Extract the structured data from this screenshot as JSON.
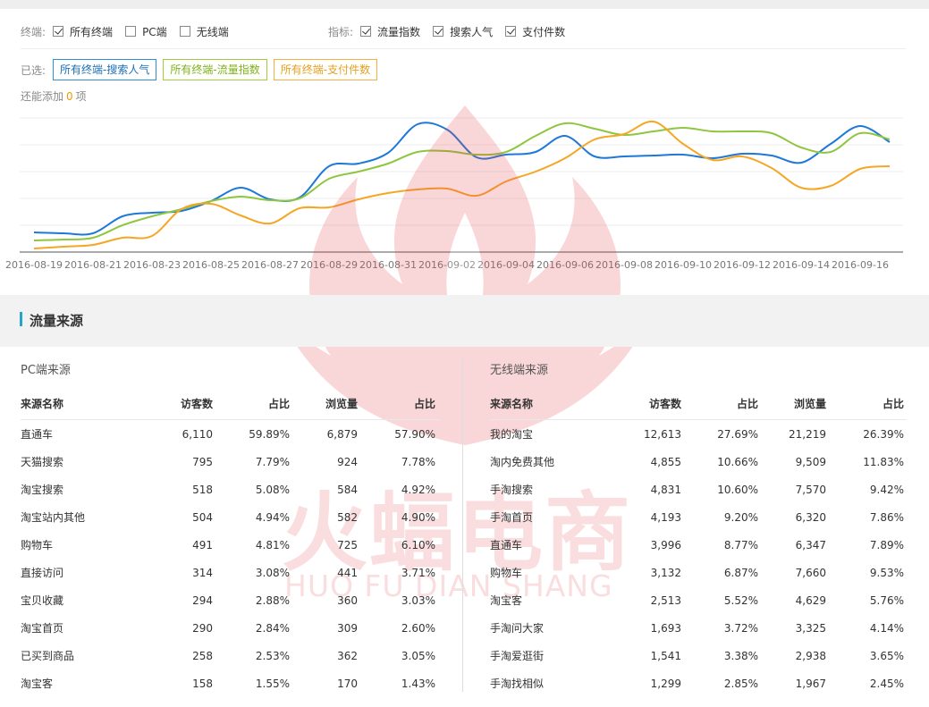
{
  "filters": {
    "terminal_label": "终端:",
    "terminal_options": [
      {
        "label": "所有终端",
        "checked": true
      },
      {
        "label": "PC端",
        "checked": false
      },
      {
        "label": "无线端",
        "checked": false
      }
    ],
    "metric_label": "指标:",
    "metric_options": [
      {
        "label": "流量指数",
        "checked": true
      },
      {
        "label": "搜索人气",
        "checked": true
      },
      {
        "label": "支付件数",
        "checked": true
      }
    ]
  },
  "selected": {
    "label": "已选:",
    "tags": [
      {
        "label": "所有终端-搜索人气",
        "color": "#2f8fd8"
      },
      {
        "label": "所有终端-流量指数",
        "color": "#9fcf3e"
      },
      {
        "label": "所有终端-支付件数",
        "color": "#f5b040"
      }
    ],
    "add_more_prefix": "还能添加",
    "add_more_count": "0",
    "add_more_suffix": "项"
  },
  "chart_data": {
    "type": "line",
    "x_tick_labels": [
      "2016-08-19",
      "2016-08-21",
      "2016-08-23",
      "2016-08-25",
      "2016-08-27",
      "2016-08-29",
      "2016-08-31",
      "2016-09-02",
      "2016-09-04",
      "2016-09-06",
      "2016-09-08",
      "2016-09-10",
      "2016-09-12",
      "2016-09-14",
      "2016-09-16"
    ],
    "x_days": [
      "2016-08-19",
      "2016-08-20",
      "2016-08-21",
      "2016-08-22",
      "2016-08-23",
      "2016-08-24",
      "2016-08-25",
      "2016-08-26",
      "2016-08-27",
      "2016-08-28",
      "2016-08-29",
      "2016-08-30",
      "2016-08-31",
      "2016-09-01",
      "2016-09-02",
      "2016-09-03",
      "2016-09-04",
      "2016-09-05",
      "2016-09-06",
      "2016-09-07",
      "2016-09-08",
      "2016-09-09",
      "2016-09-10",
      "2016-09-11",
      "2016-09-12",
      "2016-09-13",
      "2016-09-14",
      "2016-09-15",
      "2016-09-16",
      "2016-09-17"
    ],
    "y_range": [
      0,
      150
    ],
    "grid": true,
    "series": [
      {
        "color": "#1e78d8",
        "values": [
          22,
          21,
          21,
          40,
          44,
          46,
          57,
          72,
          59,
          61,
          96,
          99,
          111,
          143,
          137,
          106,
          109,
          112,
          130,
          107,
          107,
          108,
          109,
          105,
          110,
          108,
          100,
          121,
          141,
          123
        ]
      },
      {
        "color": "#8ec63f",
        "values": [
          13,
          14,
          16,
          30,
          40,
          48,
          57,
          62,
          58,
          60,
          82,
          90,
          99,
          112,
          113,
          109,
          112,
          130,
          144,
          138,
          131,
          135,
          139,
          135,
          135,
          133,
          117,
          112,
          133,
          126
        ]
      },
      {
        "color": "#f5a623",
        "values": [
          4,
          6,
          8,
          16,
          18,
          48,
          54,
          41,
          32,
          49,
          50,
          59,
          66,
          70,
          71,
          63,
          79,
          90,
          105,
          126,
          132,
          146,
          121,
          103,
          107,
          94,
          72,
          74,
          93,
          96
        ]
      }
    ]
  },
  "traffic": {
    "section_title": "流量来源",
    "pc": {
      "title": "PC端来源",
      "headers": [
        "来源名称",
        "访客数",
        "占比",
        "浏览量",
        "占比"
      ],
      "rows": [
        [
          "直通车",
          "6,110",
          "59.89%",
          "6,879",
          "57.90%"
        ],
        [
          "天猫搜索",
          "795",
          "7.79%",
          "924",
          "7.78%"
        ],
        [
          "淘宝搜索",
          "518",
          "5.08%",
          "584",
          "4.92%"
        ],
        [
          "淘宝站内其他",
          "504",
          "4.94%",
          "582",
          "4.90%"
        ],
        [
          "购物车",
          "491",
          "4.81%",
          "725",
          "6.10%"
        ],
        [
          "直接访问",
          "314",
          "3.08%",
          "441",
          "3.71%"
        ],
        [
          "宝贝收藏",
          "294",
          "2.88%",
          "360",
          "3.03%"
        ],
        [
          "淘宝首页",
          "290",
          "2.84%",
          "309",
          "2.60%"
        ],
        [
          "已买到商品",
          "258",
          "2.53%",
          "362",
          "3.05%"
        ],
        [
          "淘宝客",
          "158",
          "1.55%",
          "170",
          "1.43%"
        ]
      ]
    },
    "mobile": {
      "title": "无线端来源",
      "headers": [
        "来源名称",
        "访客数",
        "占比",
        "浏览量",
        "占比"
      ],
      "rows": [
        [
          "我的淘宝",
          "12,613",
          "27.69%",
          "21,219",
          "26.39%"
        ],
        [
          "淘内免费其他",
          "4,855",
          "10.66%",
          "9,509",
          "11.83%"
        ],
        [
          "手淘搜索",
          "4,831",
          "10.60%",
          "7,570",
          "9.42%"
        ],
        [
          "手淘首页",
          "4,193",
          "9.20%",
          "6,320",
          "7.86%"
        ],
        [
          "直通车",
          "3,996",
          "8.77%",
          "6,347",
          "7.89%"
        ],
        [
          "购物车",
          "3,132",
          "6.87%",
          "7,660",
          "9.53%"
        ],
        [
          "淘宝客",
          "2,513",
          "5.52%",
          "4,629",
          "5.76%"
        ],
        [
          "手淘问大家",
          "1,693",
          "3.72%",
          "3,325",
          "4.14%"
        ],
        [
          "手淘爱逛街",
          "1,541",
          "3.38%",
          "2,938",
          "3.65%"
        ],
        [
          "手淘找相似",
          "1,299",
          "2.85%",
          "1,967",
          "2.45%"
        ]
      ]
    }
  },
  "watermark": {
    "text_cn": "火蝠电商",
    "text_en": "HUO FU DIAN SHANG",
    "color": "#e8474f"
  }
}
